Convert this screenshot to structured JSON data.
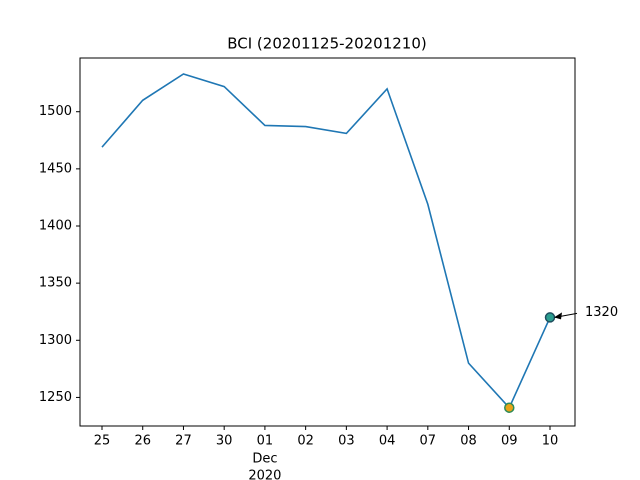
{
  "chart_data": {
    "type": "line",
    "title": "BCI (20201125-20201210)",
    "categories": [
      "25",
      "26",
      "27",
      "30",
      "01",
      "02",
      "03",
      "04",
      "07",
      "08",
      "09",
      "10"
    ],
    "category_sublabel": {
      "index": 4,
      "lines": [
        "Dec",
        "2020"
      ]
    },
    "values": [
      1469,
      1510,
      1533,
      1522,
      1488,
      1487,
      1481,
      1520,
      1419,
      1280,
      1241,
      1320
    ],
    "color": "#1f77b4",
    "ylim": [
      1225,
      1547
    ],
    "yticks": [
      1250,
      1300,
      1350,
      1400,
      1450,
      1500
    ],
    "grid": false,
    "min_marker": {
      "fill": "#e8a317",
      "edge": "#2e8b57"
    },
    "last_marker": {
      "fill": "#2a9d8f",
      "edge": "#1f4e5f"
    }
  }
}
